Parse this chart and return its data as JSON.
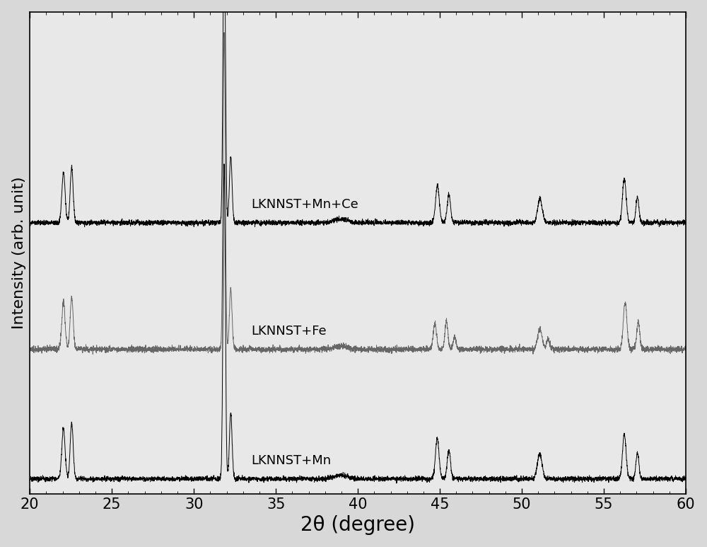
{
  "xlabel": "2θ (degree)",
  "ylabel": "Intensity (arb. unit)",
  "xlim": [
    20,
    60
  ],
  "ylim": [
    -0.05,
    1.55
  ],
  "xticks": [
    20,
    25,
    30,
    35,
    40,
    45,
    50,
    55,
    60
  ],
  "background_color": "#d8d8d8",
  "plot_background_color": "#e8e8e8",
  "line_colors": [
    "#000000",
    "#666666",
    "#000000"
  ],
  "labels": [
    "LKNNST+Mn+Ce",
    "LKNNST+Fe",
    "LKNNST+Mn"
  ],
  "offsets": [
    0.85,
    0.43,
    0.0
  ],
  "noise_scale": 0.004,
  "xlabel_fontsize": 20,
  "ylabel_fontsize": 16,
  "tick_fontsize": 15
}
